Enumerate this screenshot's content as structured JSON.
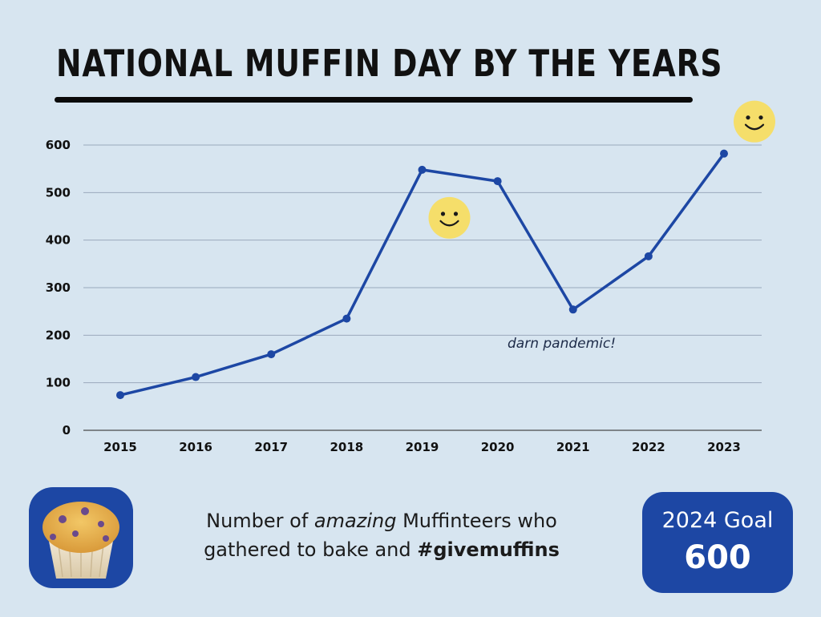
{
  "title": "NATIONAL MUFFIN DAY BY THE YEARS",
  "chart_data": {
    "type": "line",
    "categories": [
      "2015",
      "2016",
      "2017",
      "2018",
      "2019",
      "2020",
      "2021",
      "2022",
      "2023"
    ],
    "values": [
      74,
      112,
      160,
      235,
      548,
      524,
      254,
      366,
      582
    ],
    "ylim": [
      0,
      600
    ],
    "yticks": [
      0,
      100,
      200,
      300,
      400,
      500,
      600
    ],
    "grid": true,
    "line_color": "#1d47a4",
    "annotations": [
      {
        "text": "darn pandemic!",
        "near": "2021"
      }
    ],
    "smiley_icons": [
      "2019",
      "2023"
    ]
  },
  "caption": {
    "part1": "Number of ",
    "emphasis": "amazing",
    "part2": " Muffinteers who",
    "part3": "gathered to bake and ",
    "hashtag": "#givemuffins"
  },
  "goal": {
    "label": "2024 Goal",
    "value": "600"
  },
  "colors": {
    "background": "#d7e5f0",
    "accent": "#1d47a4",
    "smiley": "#f5de6a"
  },
  "icons": [
    "muffin-icon",
    "smiley-icon"
  ]
}
